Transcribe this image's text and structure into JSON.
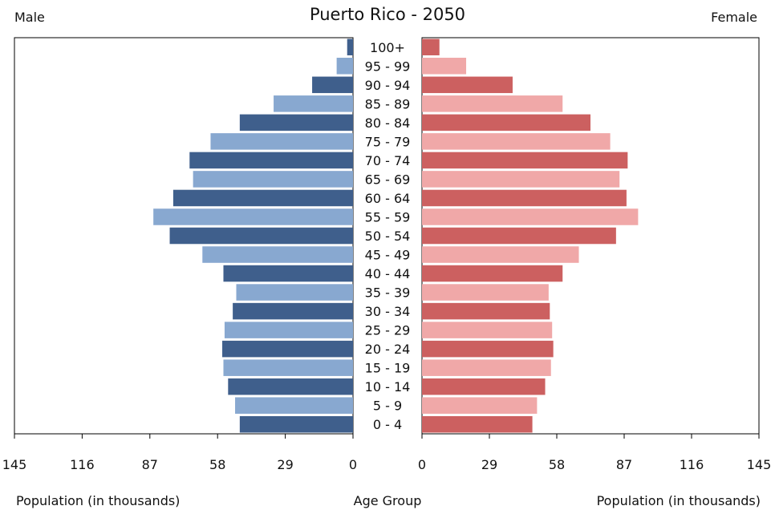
{
  "chart_data": {
    "type": "bar",
    "title": "Puerto Rico - 2050",
    "left_label": "Male",
    "right_label": "Female",
    "xlabel_left": "Population (in thousands)",
    "xlabel_center": "Age Group",
    "xlabel_right": "Population (in thousands)",
    "xlim": [
      0,
      145
    ],
    "x_ticks_left": [
      "145",
      "116",
      "87",
      "58",
      "29",
      "0"
    ],
    "x_ticks_right": [
      "0",
      "29",
      "58",
      "87",
      "116",
      "145"
    ],
    "x_tick_values": [
      0,
      29,
      58,
      87,
      116,
      145
    ],
    "categories": [
      "100+",
      "95 - 99",
      "90 - 94",
      "85 - 89",
      "80 - 84",
      "75 - 79",
      "70 - 74",
      "65 - 69",
      "60 - 64",
      "55 - 59",
      "50 - 54",
      "45 - 49",
      "40 - 44",
      "35 - 39",
      "30 - 34",
      "25 - 29",
      "20 - 24",
      "15 - 19",
      "10 - 14",
      "5 - 9",
      "0 - 4"
    ],
    "series": [
      {
        "name": "Male",
        "side": "left",
        "colors": [
          "#3f5f8c",
          "#88a8d0"
        ],
        "values": [
          2.5,
          7,
          17.5,
          34,
          48.5,
          61,
          70,
          68.5,
          77,
          85.5,
          78.5,
          64.5,
          55.5,
          50,
          51.5,
          55,
          56,
          55.5,
          53.5,
          50.5,
          48.5
        ]
      },
      {
        "name": "Female",
        "side": "right",
        "colors": [
          "#cc6060",
          "#f0a8a8"
        ],
        "values": [
          7.5,
          19,
          39,
          60.5,
          72.5,
          81,
          88.5,
          85,
          88,
          93,
          83.5,
          67.5,
          60.5,
          54.5,
          55,
          56,
          56.5,
          55.5,
          53,
          49.5,
          47.5
        ]
      }
    ]
  }
}
